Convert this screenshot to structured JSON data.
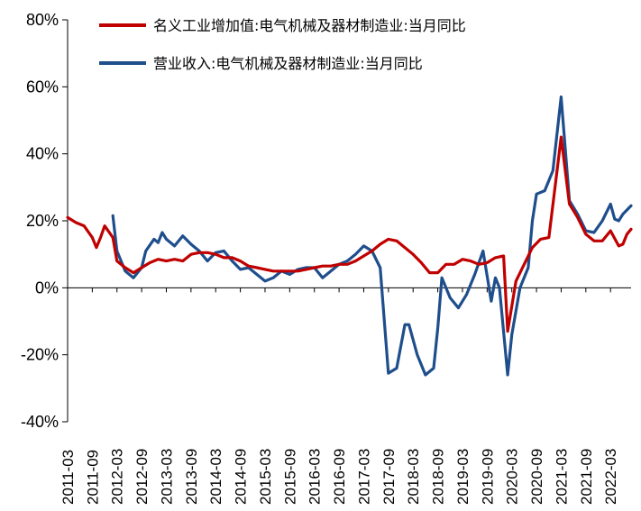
{
  "chart_data": {
    "type": "line",
    "title": "",
    "xlabel": "",
    "ylabel": "",
    "ylim": [
      -40,
      80
    ],
    "y_ticks": [
      -40,
      -20,
      0,
      20,
      40,
      60,
      80
    ],
    "y_tick_labels": [
      "-40%",
      "-20%",
      "0%",
      "20%",
      "40%",
      "60%",
      "80%"
    ],
    "x_tick_labels": [
      "2011-03",
      "2011-09",
      "2012-03",
      "2012-09",
      "2013-03",
      "2013-09",
      "2014-03",
      "2014-09",
      "2015-03",
      "2015-09",
      "2016-03",
      "2016-09",
      "2017-03",
      "2017-09",
      "2018-03",
      "2018-09",
      "2019-03",
      "2019-09",
      "2020-03",
      "2020-09",
      "2021-03",
      "2021-09",
      "2022-03"
    ],
    "x_start": "2011-03",
    "x_end": "2022-08",
    "legend_position": "top",
    "series": [
      {
        "name": "名义工业增加值:电气机械及器材制造业:当月同比",
        "color": "#C00000",
        "points": [
          [
            "2011-03",
            21
          ],
          [
            "2011-05",
            19.5
          ],
          [
            "2011-07",
            18.5
          ],
          [
            "2011-09",
            15
          ],
          [
            "2011-10",
            12
          ],
          [
            "2011-11",
            15
          ],
          [
            "2011-12",
            18.5
          ],
          [
            "2012-02",
            15
          ],
          [
            "2012-03",
            8
          ],
          [
            "2012-05",
            6
          ],
          [
            "2012-07",
            4.5
          ],
          [
            "2012-09",
            6
          ],
          [
            "2012-11",
            7.5
          ],
          [
            "2013-01",
            8.5
          ],
          [
            "2013-03",
            8
          ],
          [
            "2013-05",
            8.5
          ],
          [
            "2013-07",
            8
          ],
          [
            "2013-09",
            10
          ],
          [
            "2013-11",
            10.5
          ],
          [
            "2014-01",
            10.5
          ],
          [
            "2014-03",
            10
          ],
          [
            "2014-05",
            9
          ],
          [
            "2014-07",
            9
          ],
          [
            "2014-09",
            8
          ],
          [
            "2014-11",
            6.5
          ],
          [
            "2015-01",
            6
          ],
          [
            "2015-03",
            5.5
          ],
          [
            "2015-05",
            5
          ],
          [
            "2015-07",
            5
          ],
          [
            "2015-09",
            5
          ],
          [
            "2015-11",
            5
          ],
          [
            "2016-01",
            5.5
          ],
          [
            "2016-03",
            6
          ],
          [
            "2016-05",
            6.5
          ],
          [
            "2016-07",
            6.5
          ],
          [
            "2016-09",
            7
          ],
          [
            "2016-11",
            7
          ],
          [
            "2017-01",
            8
          ],
          [
            "2017-03",
            9.5
          ],
          [
            "2017-05",
            11
          ],
          [
            "2017-07",
            13
          ],
          [
            "2017-09",
            14.5
          ],
          [
            "2017-11",
            14
          ],
          [
            "2018-01",
            12
          ],
          [
            "2018-03",
            10
          ],
          [
            "2018-05",
            7.5
          ],
          [
            "2018-07",
            4.5
          ],
          [
            "2018-09",
            4.5
          ],
          [
            "2018-11",
            7
          ],
          [
            "2019-01",
            7
          ],
          [
            "2019-03",
            8.5
          ],
          [
            "2019-05",
            8
          ],
          [
            "2019-07",
            7
          ],
          [
            "2019-09",
            7.5
          ],
          [
            "2019-11",
            9
          ],
          [
            "2020-01",
            9.5
          ],
          [
            "2020-02",
            -13
          ],
          [
            "2020-04",
            2
          ],
          [
            "2020-06",
            7
          ],
          [
            "2020-08",
            12
          ],
          [
            "2020-10",
            14.5
          ],
          [
            "2020-12",
            15
          ],
          [
            "2021-02",
            35
          ],
          [
            "2021-03",
            45
          ],
          [
            "2021-05",
            25
          ],
          [
            "2021-07",
            21
          ],
          [
            "2021-09",
            16
          ],
          [
            "2021-11",
            14
          ],
          [
            "2022-01",
            14
          ],
          [
            "2022-03",
            17
          ],
          [
            "2022-05",
            12.5
          ],
          [
            "2022-06",
            13
          ],
          [
            "2022-07",
            16
          ],
          [
            "2022-08",
            17.5
          ]
        ]
      },
      {
        "name": "营业收入:电气机械及器材制造业:当月同比",
        "color": "#1F4E8C",
        "points": [
          [
            "2012-02",
            21.5
          ],
          [
            "2012-03",
            11
          ],
          [
            "2012-05",
            5
          ],
          [
            "2012-07",
            3
          ],
          [
            "2012-09",
            6
          ],
          [
            "2012-10",
            11
          ],
          [
            "2012-12",
            14.5
          ],
          [
            "2013-01",
            13.5
          ],
          [
            "2013-02",
            16.5
          ],
          [
            "2013-03",
            14.5
          ],
          [
            "2013-05",
            12.5
          ],
          [
            "2013-07",
            15.5
          ],
          [
            "2013-09",
            13
          ],
          [
            "2013-11",
            11
          ],
          [
            "2014-01",
            8
          ],
          [
            "2014-03",
            10.5
          ],
          [
            "2014-05",
            11
          ],
          [
            "2014-07",
            8
          ],
          [
            "2014-09",
            5.5
          ],
          [
            "2014-11",
            6
          ],
          [
            "2015-01",
            4
          ],
          [
            "2015-03",
            2
          ],
          [
            "2015-05",
            3
          ],
          [
            "2015-07",
            5
          ],
          [
            "2015-09",
            4
          ],
          [
            "2015-11",
            5.5
          ],
          [
            "2016-01",
            6
          ],
          [
            "2016-03",
            6
          ],
          [
            "2016-05",
            3
          ],
          [
            "2016-07",
            5
          ],
          [
            "2016-09",
            7
          ],
          [
            "2016-11",
            8
          ],
          [
            "2017-01",
            10
          ],
          [
            "2017-03",
            12.5
          ],
          [
            "2017-05",
            11
          ],
          [
            "2017-07",
            6
          ],
          [
            "2017-09",
            -25.5
          ],
          [
            "2017-11",
            -24
          ],
          [
            "2018-01",
            -11
          ],
          [
            "2018-02",
            -11
          ],
          [
            "2018-04",
            -20
          ],
          [
            "2018-06",
            -26
          ],
          [
            "2018-08",
            -24
          ],
          [
            "2018-09",
            -12
          ],
          [
            "2018-10",
            3
          ],
          [
            "2018-12",
            -3
          ],
          [
            "2019-02",
            -6
          ],
          [
            "2019-04",
            -2
          ],
          [
            "2019-06",
            4
          ],
          [
            "2019-08",
            11
          ],
          [
            "2019-10",
            -4
          ],
          [
            "2019-11",
            3
          ],
          [
            "2019-12",
            0
          ],
          [
            "2020-02",
            -26
          ],
          [
            "2020-03",
            -14
          ],
          [
            "2020-05",
            0
          ],
          [
            "2020-07",
            6
          ],
          [
            "2020-08",
            20
          ],
          [
            "2020-09",
            28
          ],
          [
            "2020-11",
            29
          ],
          [
            "2021-01",
            35
          ],
          [
            "2021-03",
            57
          ],
          [
            "2021-05",
            26
          ],
          [
            "2021-07",
            22
          ],
          [
            "2021-09",
            17
          ],
          [
            "2021-11",
            16.5
          ],
          [
            "2022-01",
            20
          ],
          [
            "2022-03",
            25
          ],
          [
            "2022-04",
            20.5
          ],
          [
            "2022-05",
            20
          ],
          [
            "2022-06",
            22
          ],
          [
            "2022-08",
            24.5
          ]
        ]
      }
    ]
  }
}
